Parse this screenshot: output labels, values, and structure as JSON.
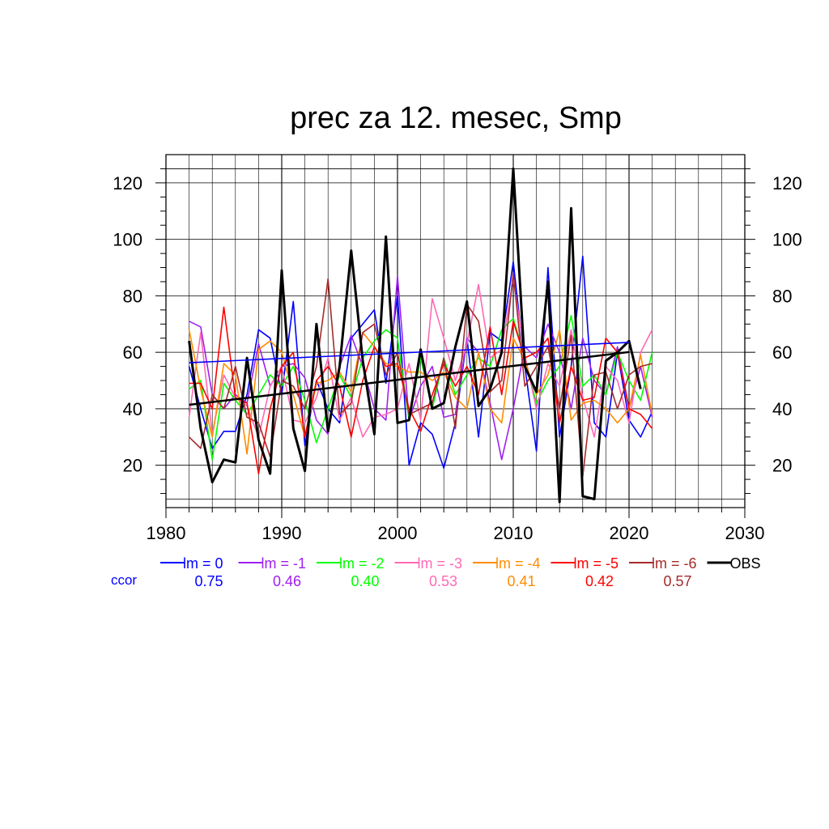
{
  "chart_data": {
    "type": "line",
    "title": "prec za 12. mesec, Smp",
    "xlabel": "",
    "ylabel": "",
    "xlim": [
      1980,
      2030
    ],
    "ylim": [
      5,
      130
    ],
    "x_ticks": [
      1980,
      1990,
      2000,
      2010,
      2020,
      2030
    ],
    "y_ticks": [
      20,
      40,
      60,
      80,
      100,
      120
    ],
    "x_tick_labels": [
      "1980",
      "1990",
      "2000",
      "2010",
      "2020",
      "2030"
    ],
    "y_tick_labels": [
      "20",
      "40",
      "60",
      "80",
      "100",
      "120"
    ],
    "grid": true,
    "legend_position": "bottom",
    "ccor_label": "ccor",
    "series": [
      {
        "name": "lm = 0",
        "color": "#0000ff",
        "ccor": "0.75",
        "start_year": 1982,
        "values": [
          55,
          40,
          26,
          32,
          32,
          45,
          68,
          65,
          45,
          78,
          27,
          50,
          40,
          35,
          65,
          70,
          75,
          49,
          80,
          20,
          35,
          31,
          19,
          35,
          65,
          30,
          67,
          64,
          92,
          55,
          25,
          90,
          30,
          55,
          94,
          35,
          30,
          60,
          36,
          30,
          39
        ],
        "trend": [
          56.3,
          63.5
        ]
      },
      {
        "name": "lm = -1",
        "color": "#a020f0",
        "ccor": "0.46",
        "start_year": 1982,
        "values": [
          71,
          69,
          45,
          40,
          45,
          42,
          63,
          48,
          55,
          56,
          51,
          36,
          31,
          55,
          66,
          55,
          40,
          36,
          87,
          36,
          48,
          55,
          37,
          38,
          65,
          60,
          42,
          22,
          40,
          62,
          58,
          70,
          60,
          40,
          65,
          50,
          45,
          62,
          40,
          55,
          37
        ]
      },
      {
        "name": "lm = -2",
        "color": "#00ff00",
        "ccor": "0.40",
        "start_year": 1982,
        "values": [
          47,
          50,
          22,
          49,
          43,
          38,
          45,
          52,
          48,
          55,
          43,
          28,
          40,
          52,
          44,
          58,
          64,
          68,
          65,
          36,
          58,
          40,
          58,
          45,
          52,
          58,
          55,
          68,
          72,
          58,
          42,
          50,
          55,
          73,
          48,
          52,
          45,
          60,
          50,
          43,
          60
        ]
      },
      {
        "name": "lm = -3",
        "color": "#ff69b4",
        "ccor": "0.53",
        "start_year": 1982,
        "values": [
          37,
          67,
          31,
          52,
          44,
          41,
          30,
          48,
          55,
          36,
          35,
          44,
          58,
          36,
          44,
          30,
          37,
          38,
          40,
          56,
          36,
          79,
          65,
          50,
          63,
          84,
          58,
          61,
          86,
          59,
          40,
          56,
          48,
          68,
          44,
          30,
          55,
          50,
          35,
          60,
          68
        ]
      },
      {
        "name": "lm = -4",
        "color": "#ff8c00",
        "ccor": "0.41",
        "start_year": 1982,
        "values": [
          68,
          47,
          30,
          56,
          52,
          24,
          61,
          64,
          60,
          45,
          30,
          49,
          50,
          53,
          46,
          67,
          62,
          56,
          55,
          53,
          53,
          50,
          53,
          44,
          40,
          60,
          40,
          35,
          65,
          57,
          45,
          52,
          68,
          36,
          42,
          43,
          40,
          35,
          40,
          59,
          38
        ]
      },
      {
        "name": "lm = -5",
        "color": "#ff0000",
        "ccor": "0.42",
        "start_year": 1982,
        "values": [
          49,
          49,
          40,
          76,
          44,
          42,
          17,
          40,
          55,
          60,
          30,
          50,
          55,
          48,
          30,
          50,
          62,
          55,
          56,
          40,
          32,
          45,
          56,
          48,
          55,
          45,
          69,
          45,
          71,
          58,
          60,
          65,
          35,
          55,
          43,
          44,
          65,
          60,
          40,
          38,
          33
        ]
      },
      {
        "name": "lm = -6",
        "color": "#a52a2a",
        "ccor": "0.57",
        "start_year": 1982,
        "values": [
          30,
          26,
          45,
          40,
          55,
          37,
          35,
          23,
          50,
          48,
          40,
          55,
          86,
          38,
          42,
          67,
          70,
          52,
          60,
          38,
          40,
          42,
          58,
          33,
          77,
          71,
          46,
          50,
          88,
          48,
          55,
          62,
          40,
          66,
          16,
          52,
          53,
          40,
          52,
          55,
          56
        ]
      },
      {
        "name": "OBS",
        "color": "#000000",
        "ccor": "",
        "start_year": 1982,
        "values": [
          64,
          33,
          14,
          22,
          21,
          58,
          29,
          17,
          89,
          33,
          18,
          70,
          32,
          55,
          96,
          57,
          31,
          101,
          35,
          36,
          61,
          40,
          42,
          62,
          78,
          41,
          47,
          60,
          125,
          55,
          46,
          85,
          7,
          111,
          9,
          8,
          57,
          60,
          64,
          47
        ],
        "trend": [
          41.4,
          60.1
        ]
      }
    ]
  }
}
